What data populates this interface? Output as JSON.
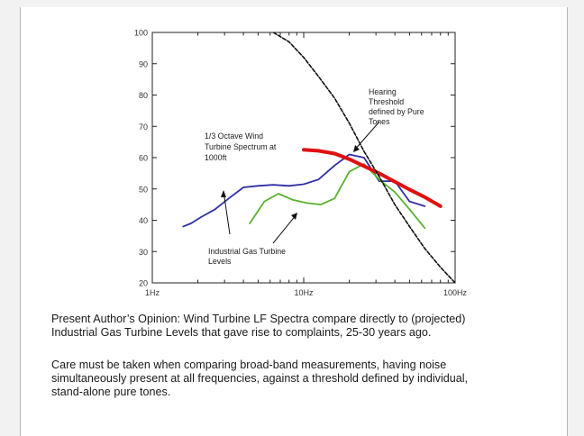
{
  "chart_data": {
    "type": "line",
    "x_scale": "log",
    "xlim": [
      1,
      100
    ],
    "ylim": [
      20,
      100
    ],
    "x_ticks": [
      1,
      10,
      100
    ],
    "x_tick_labels": [
      "1Hz",
      "10Hz",
      "100Hz"
    ],
    "y_ticks": [
      20,
      30,
      40,
      50,
      60,
      70,
      80,
      90,
      100
    ],
    "y_tick_labels": [
      "20",
      "30",
      "40",
      "50",
      "60",
      "70",
      "80",
      "90",
      "100"
    ],
    "grid": false,
    "series": [
      {
        "color": "#2f2fa6",
        "points": [
          [
            1.6,
            38
          ],
          [
            1.8,
            39
          ],
          [
            2.1,
            41
          ],
          [
            2.6,
            43.5
          ],
          [
            3.2,
            47
          ],
          [
            4,
            50.5
          ],
          [
            5,
            51
          ],
          [
            6.3,
            51.3
          ],
          [
            8,
            51
          ],
          [
            10,
            51.5
          ],
          [
            12.5,
            53
          ],
          [
            16,
            57.5
          ],
          [
            20,
            61
          ],
          [
            25,
            60
          ],
          [
            31.5,
            52.5
          ],
          [
            40,
            52.5
          ],
          [
            50,
            46
          ],
          [
            63,
            44.5
          ]
        ]
      },
      {
        "color": "#5ab030",
        "points": [
          [
            4.4,
            39
          ],
          [
            5.5,
            46
          ],
          [
            6.8,
            48.5
          ],
          [
            8.5,
            46.5
          ],
          [
            10.5,
            45.5
          ],
          [
            13,
            45
          ],
          [
            16,
            47
          ],
          [
            20,
            55.5
          ],
          [
            25,
            58
          ],
          [
            31.5,
            53
          ],
          [
            40,
            49
          ],
          [
            50,
            43.5
          ],
          [
            63,
            37.5
          ]
        ]
      },
      {
        "color": "#e01010",
        "points": [
          [
            10,
            62.5
          ],
          [
            12.5,
            62.2
          ],
          [
            16,
            61.3
          ],
          [
            20,
            59.5
          ],
          [
            25,
            57.3
          ],
          [
            31.5,
            55
          ],
          [
            40,
            52.3
          ],
          [
            50,
            49.8
          ],
          [
            63,
            47.4
          ],
          [
            80,
            44.5
          ]
        ]
      },
      {
        "color": "#111111",
        "points": [
          [
            6.3,
            100
          ],
          [
            8,
            97
          ],
          [
            10,
            92
          ],
          [
            12.5,
            86
          ],
          [
            16,
            79
          ],
          [
            20,
            71
          ],
          [
            25,
            62
          ],
          [
            31.5,
            54
          ],
          [
            40,
            45
          ],
          [
            50,
            38
          ],
          [
            63,
            31
          ],
          [
            80,
            25
          ],
          [
            100,
            20
          ]
        ]
      }
    ],
    "annotations": [
      {
        "key": "wind",
        "lines": [
          "1/3 Octave Wind",
          "Turbine Spectrum at",
          "1000ft"
        ]
      },
      {
        "key": "gas",
        "lines": [
          "Industrial Gas Turbine",
          "Levels"
        ]
      },
      {
        "key": "hearing",
        "lines": [
          "Hearing",
          "Threshold",
          "defined by Pure",
          "Tones"
        ]
      }
    ]
  },
  "caption": {
    "opinion_line1": "Present Author’s Opinion:   Wind Turbine LF Spectra compare directly to (projected)",
    "opinion_line2": "Industrial Gas Turbine  Levels that gave rise to complaints, 25-30 years ago.",
    "care_line1": "Care must be taken when comparing broad-band measurements, having noise",
    "care_line2": "simultaneously present at all frequencies, against a threshold defined by individual,",
    "care_line3": "stand-alone pure tones."
  }
}
